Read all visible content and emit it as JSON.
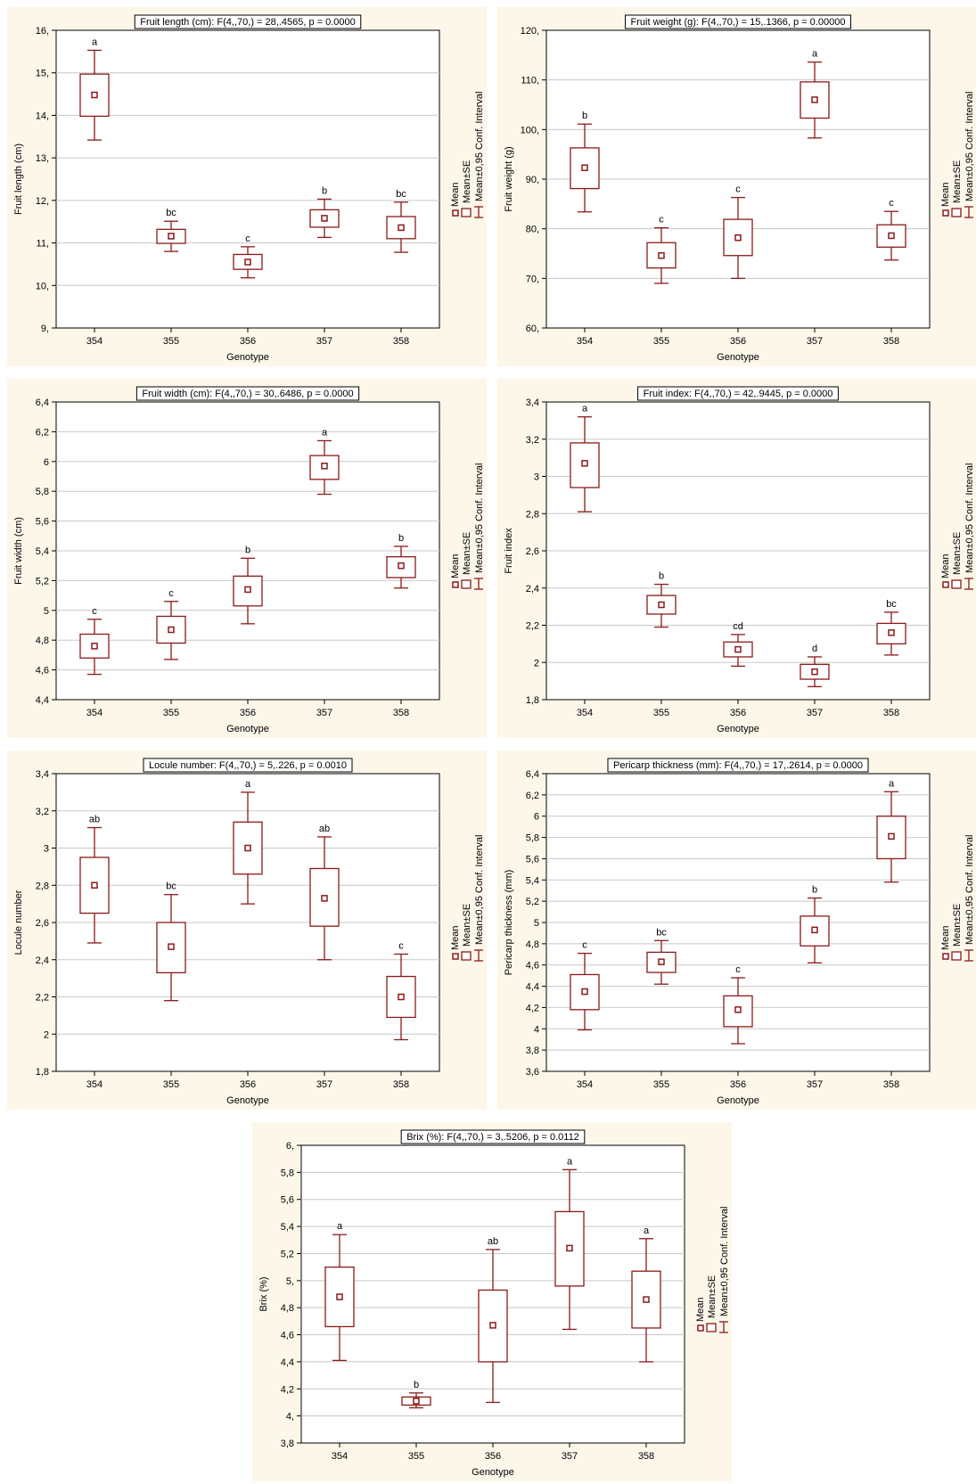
{
  "chart_data": [
    {
      "type": "box",
      "title": "Fruit length (cm):   F(4,,70,) = 28,.4565, p = 0.0000",
      "xlabel": "Genotype",
      "ylabel": "Fruit length (cm)",
      "ylim": [
        9,
        16
      ],
      "ytick_step": 1,
      "ytick_labels": [
        "9,",
        "10,",
        "11,",
        "12,",
        "13,",
        "14,",
        "15,",
        "16,"
      ],
      "categories": [
        "354",
        "355",
        "356",
        "357",
        "358"
      ],
      "mean": [
        14.48,
        11.16,
        10.55,
        11.58,
        11.36
      ],
      "se_low": [
        13.98,
        10.99,
        10.38,
        11.37,
        11.1
      ],
      "se_high": [
        14.97,
        11.32,
        10.73,
        11.78,
        11.62
      ],
      "ci_low": [
        13.42,
        10.8,
        10.18,
        11.13,
        10.78
      ],
      "ci_high": [
        15.53,
        11.51,
        10.91,
        12.03,
        11.96
      ],
      "letters": [
        "a",
        "bc",
        "c",
        "b",
        "bc"
      ],
      "legend": [
        "Mean",
        "Mean±SE",
        "Mean±0,95 Conf. Interval"
      ]
    },
    {
      "type": "box",
      "title": "Fruit weight (g):   F(4,,70,) = 15,.1366, p = 0.00000",
      "xlabel": "Genotype",
      "ylabel": "Fruit weight (g)",
      "ylim": [
        60,
        120
      ],
      "ytick_step": 10,
      "ytick_labels": [
        "60,",
        "70,",
        "80,",
        "90,",
        "100,",
        "110,",
        "120,"
      ],
      "categories": [
        "354",
        "355",
        "356",
        "357",
        "358"
      ],
      "mean": [
        92.3,
        74.6,
        78.2,
        106.0,
        78.6
      ],
      "se_low": [
        88.1,
        72.1,
        74.6,
        102.3,
        76.3
      ],
      "se_high": [
        96.3,
        77.2,
        81.9,
        109.6,
        80.8
      ],
      "ci_low": [
        83.4,
        69.0,
        70.0,
        98.3,
        73.7
      ],
      "ci_high": [
        101.1,
        80.2,
        86.3,
        113.6,
        83.5
      ],
      "letters": [
        "b",
        "c",
        "c",
        "a",
        "c"
      ],
      "legend": [
        "Mean",
        "Mean±SE",
        "Mean±0,95 Conf. Interval"
      ]
    },
    {
      "type": "box",
      "title": "Fruit width (cm):   F(4,,70,) = 30,.6486, p = 0.0000",
      "xlabel": "Genotype",
      "ylabel": "Fruit width (cm)",
      "ylim": [
        4.4,
        6.4
      ],
      "ytick_step": 0.2,
      "ytick_labels": [
        "4,4",
        "4,6",
        "4,8",
        "5",
        "5,2",
        "5,4",
        "5,6",
        "5,8",
        "6",
        "6,2",
        "6,4"
      ],
      "categories": [
        "354",
        "355",
        "356",
        "357",
        "358"
      ],
      "mean": [
        4.76,
        4.87,
        5.14,
        5.97,
        5.3
      ],
      "se_low": [
        4.68,
        4.78,
        5.03,
        5.88,
        5.22
      ],
      "se_high": [
        4.84,
        4.96,
        5.23,
        6.04,
        5.36
      ],
      "ci_low": [
        4.57,
        4.67,
        4.91,
        5.78,
        5.15
      ],
      "ci_high": [
        4.94,
        5.06,
        5.35,
        6.14,
        5.43
      ],
      "letters": [
        "c",
        "c",
        "b",
        "a",
        "b"
      ],
      "legend": [
        "Mean",
        "Mean±SE",
        "Mean±0,95 Conf. Interval"
      ]
    },
    {
      "type": "box",
      "title": "Fruit index:   F(4,,70,) = 42,.9445, p = 0.0000",
      "xlabel": "Genotype",
      "ylabel": "Fruit index",
      "ylim": [
        1.8,
        3.4
      ],
      "ytick_step": 0.2,
      "ytick_labels": [
        "1,8",
        "2",
        "2,2",
        "2,4",
        "2,6",
        "2,8",
        "3",
        "3,2",
        "3,4"
      ],
      "categories": [
        "354",
        "355",
        "356",
        "357",
        "358"
      ],
      "mean": [
        3.07,
        2.31,
        2.07,
        1.95,
        2.16
      ],
      "se_low": [
        2.94,
        2.26,
        2.03,
        1.91,
        2.1
      ],
      "se_high": [
        3.18,
        2.36,
        2.11,
        1.99,
        2.21
      ],
      "ci_low": [
        2.81,
        2.19,
        1.98,
        1.87,
        2.04
      ],
      "ci_high": [
        3.32,
        2.42,
        2.15,
        2.03,
        2.27
      ],
      "letters": [
        "a",
        "b",
        "cd",
        "d",
        "bc"
      ],
      "legend": [
        "Mean",
        "Mean±SE",
        "Mean±0,95 Conf. Interval"
      ]
    },
    {
      "type": "box",
      "title": "Locule number:   F(4,,70,) = 5,.226, p = 0.0010",
      "xlabel": "Genotype",
      "ylabel": "Locule number",
      "ylim": [
        1.8,
        3.4
      ],
      "ytick_step": 0.2,
      "ytick_labels": [
        "1,8",
        "2",
        "2,2",
        "2,4",
        "2,6",
        "2,8",
        "3",
        "3,2",
        "3,4"
      ],
      "categories": [
        "354",
        "355",
        "356",
        "357",
        "358"
      ],
      "mean": [
        2.8,
        2.47,
        3.0,
        2.73,
        2.2
      ],
      "se_low": [
        2.65,
        2.33,
        2.86,
        2.58,
        2.09
      ],
      "se_high": [
        2.95,
        2.6,
        3.14,
        2.89,
        2.31
      ],
      "ci_low": [
        2.49,
        2.18,
        2.7,
        2.4,
        1.97
      ],
      "ci_high": [
        3.11,
        2.75,
        3.3,
        3.06,
        2.43
      ],
      "letters": [
        "ab",
        "bc",
        "a",
        "ab",
        "c"
      ],
      "legend": [
        "Mean",
        "Mean±SE",
        "Mean±0,95 Conf. Interval"
      ]
    },
    {
      "type": "box",
      "title": "Pericarp thickness (mm):   F(4,,70,) = 17,.2614, p = 0.0000",
      "xlabel": "Genotype",
      "ylabel": "Pericarp thickness (mm)",
      "ylim": [
        3.6,
        6.4
      ],
      "ytick_step": 0.2,
      "ytick_labels": [
        "3,6",
        "3,8",
        "4",
        "4,2",
        "4,4",
        "4,6",
        "4,8",
        "5",
        "5,2",
        "5,4",
        "5,6",
        "5,8",
        "6",
        "6,2",
        "6,4"
      ],
      "categories": [
        "354",
        "355",
        "356",
        "357",
        "358"
      ],
      "mean": [
        4.35,
        4.63,
        4.18,
        4.93,
        5.81
      ],
      "se_low": [
        4.18,
        4.53,
        4.02,
        4.78,
        5.6
      ],
      "se_high": [
        4.51,
        4.72,
        4.31,
        5.06,
        6.0
      ],
      "ci_low": [
        3.99,
        4.42,
        3.86,
        4.62,
        5.38
      ],
      "ci_high": [
        4.71,
        4.83,
        4.48,
        5.23,
        6.23
      ],
      "letters": [
        "c",
        "bc",
        "c",
        "b",
        "a"
      ],
      "legend": [
        "Mean",
        "Mean±SE",
        "Mean±0,95 Conf. Interval"
      ]
    },
    {
      "type": "box",
      "title": "Brix (%):   F(4,,70,) = 3,.5206, p = 0.0112",
      "xlabel": "Genotype",
      "ylabel": "Brix (%)",
      "ylim": [
        3.8,
        6.0
      ],
      "ytick_step": 0.2,
      "ytick_labels": [
        "3,8",
        "4,",
        "4,2",
        "4,4",
        "4,6",
        "4,8",
        "5,",
        "5,2",
        "5,4",
        "5,6",
        "5,8",
        "6,"
      ],
      "categories": [
        "354",
        "355",
        "356",
        "357",
        "358"
      ],
      "mean": [
        4.88,
        4.11,
        4.67,
        5.24,
        4.86
      ],
      "se_low": [
        4.66,
        4.08,
        4.4,
        4.96,
        4.65
      ],
      "se_high": [
        5.1,
        4.14,
        4.93,
        5.51,
        5.07
      ],
      "ci_low": [
        4.41,
        4.06,
        4.1,
        4.64,
        4.4
      ],
      "ci_high": [
        5.34,
        4.17,
        5.23,
        5.82,
        5.31
      ],
      "letters": [
        "a",
        "b",
        "ab",
        "a",
        "a"
      ],
      "legend": [
        "Mean",
        "Mean±SE",
        "Mean±0,95 Conf. Interval"
      ]
    }
  ]
}
